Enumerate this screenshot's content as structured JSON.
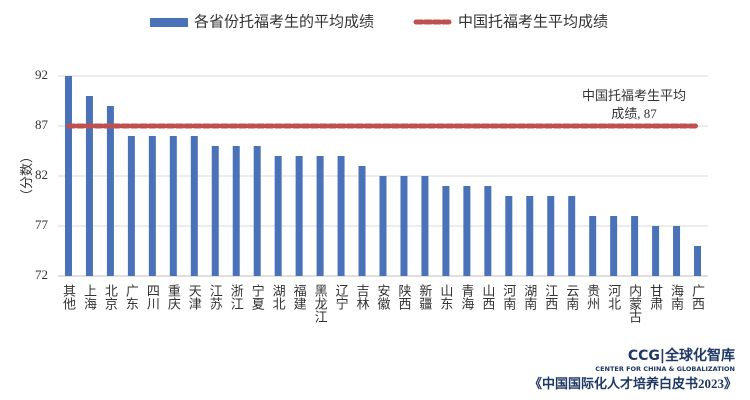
{
  "chart_data": {
    "type": "bar",
    "categories": [
      "其他",
      "上海",
      "北京",
      "广东",
      "四川",
      "重庆",
      "天津",
      "江苏",
      "浙江",
      "宁夏",
      "湖北",
      "福建",
      "黑龙江",
      "辽宁",
      "吉林",
      "安徽",
      "陕西",
      "新疆",
      "山东",
      "青海",
      "山西",
      "河南",
      "湖南",
      "江西",
      "云南",
      "贵州",
      "河北",
      "内蒙古",
      "甘肃",
      "海南",
      "广西"
    ],
    "series": [
      {
        "name": "各省份托福考生的平均成绩",
        "type": "bar",
        "color": "#4a72b8",
        "values": [
          92,
          90,
          89,
          86,
          86,
          86,
          86,
          85,
          85,
          85,
          84,
          84,
          84,
          84,
          83,
          82,
          82,
          82,
          81,
          81,
          81,
          80,
          80,
          80,
          80,
          78,
          78,
          78,
          77,
          77,
          75
        ]
      },
      {
        "name": "中国托福考生平均成绩",
        "type": "line",
        "color": "#c0504d",
        "values": [
          87,
          87,
          87,
          87,
          87,
          87,
          87,
          87,
          87,
          87,
          87,
          87,
          87,
          87,
          87,
          87,
          87,
          87,
          87,
          87,
          87,
          87,
          87,
          87,
          87,
          87,
          87,
          87,
          87,
          87,
          87
        ]
      }
    ],
    "y_label": "（分数）",
    "annotation": [
      "中国托福考生平均",
      "成绩, 87"
    ],
    "ylim": [
      72,
      92
    ],
    "yticks": [
      72,
      77,
      82,
      87,
      92
    ],
    "grid": true
  },
  "footer": {
    "logo": "CCG|全球化智库",
    "logo_sub": "CENTER FOR CHINA & GLOBALIZATION",
    "source": "《中国国际化人才培养白皮书2023》"
  }
}
